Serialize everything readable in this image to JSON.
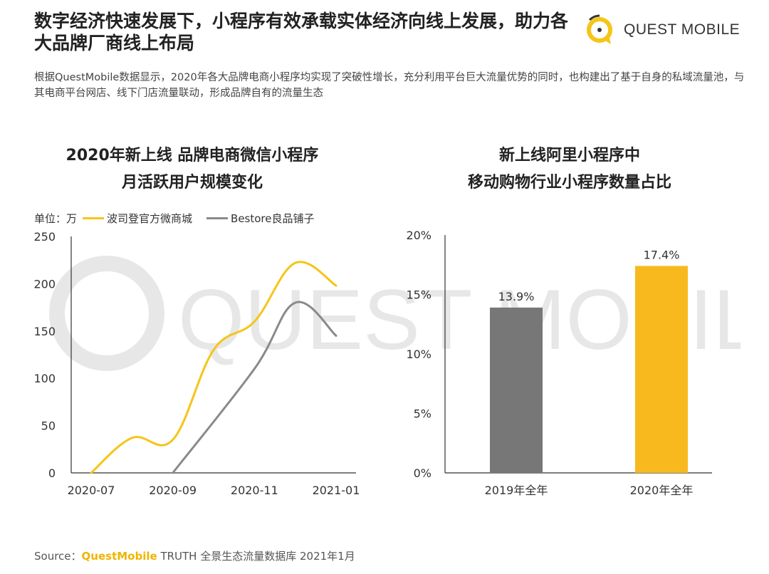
{
  "header": {
    "title": "数字经济快速发展下，小程序有效承载实体经济向线上发展，助力各大品牌厂商线上布局",
    "logo_text": "QUEST MOBILE"
  },
  "intro": "根据QuestMobile数据显示，2020年各大品牌电商小程序均实现了突破性增长，充分利用平台巨大流量优势的同时，也构建出了基于自身的私域流量池，与其电商平台网店、线下门店流量联动，形成品牌自有的流量生态",
  "colors": {
    "yellow": "#F5C518",
    "gray": "#8a8a8a",
    "bar_yellow": "#F7B91E",
    "bar_gray": "#777777",
    "axis": "#333333"
  },
  "watermark_text": "QUEST MOBILE",
  "chart_data": [
    {
      "type": "line",
      "title_line1": "2020年新上线 品牌电商微信小程序",
      "title_line2": "月活跃用户规模变化",
      "unit_label": "单位：万",
      "x_ticks": [
        "2020-07",
        "2020-09",
        "2020-11",
        "2021-01"
      ],
      "ylim": [
        0,
        250
      ],
      "y_ticks": [
        0,
        50,
        100,
        150,
        200,
        250
      ],
      "series": [
        {
          "name": "波司登官方微商城",
          "color": "#F5C518",
          "points": [
            [
              0,
              0
            ],
            [
              1,
              37
            ],
            [
              2,
              35
            ],
            [
              3,
              130
            ],
            [
              4,
              160
            ],
            [
              5,
              222
            ],
            [
              6,
              198
            ]
          ]
        },
        {
          "name": "Bestore良品铺子",
          "color": "#8a8a8a",
          "points": [
            [
              2,
              0
            ],
            [
              4,
              110
            ],
            [
              5,
              180
            ],
            [
              6,
              145
            ]
          ]
        }
      ],
      "x_range": [
        0,
        6
      ]
    },
    {
      "type": "bar",
      "title_line1": "新上线阿里小程序中",
      "title_line2": "移动购物行业小程序数量占比",
      "categories": [
        "2019年全年",
        "2020年全年"
      ],
      "values": [
        13.9,
        17.4
      ],
      "value_labels": [
        "13.9%",
        "17.4%"
      ],
      "ylim": [
        0,
        20
      ],
      "y_ticks": [
        "0%",
        "5%",
        "10%",
        "15%",
        "20%"
      ]
    }
  ],
  "source": {
    "prefix": "Source：",
    "brand": "QuestMobile",
    "suffix": " TRUTH 全景生态流量数据库 2021年1月"
  }
}
